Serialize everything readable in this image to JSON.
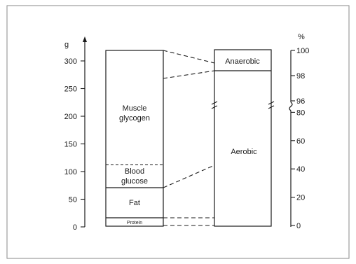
{
  "chart_data": {
    "type": "bar",
    "left_axis": {
      "unit": "g",
      "ticks": [
        "0",
        "50",
        "100",
        "150",
        "200",
        "250",
        "300"
      ],
      "range": [
        0,
        300
      ]
    },
    "right_axis": {
      "unit": "%",
      "ticks": [
        "0",
        "20",
        "40",
        "60",
        "80",
        "96",
        "98",
        "100"
      ],
      "broken": true
    },
    "energy_sources_g": {
      "segments": [
        {
          "label": "Protein",
          "from": 0,
          "to": 10
        },
        {
          "label": "Fat",
          "from": 10,
          "to": 70
        },
        {
          "label": "Blood glucose",
          "label_lines": [
            "Blood",
            "glucose"
          ],
          "from": 70,
          "to": 113
        },
        {
          "label": "Muscle glycogen",
          "label_lines": [
            "Muscle",
            "glycogen"
          ],
          "from": 113,
          "to": 320
        }
      ],
      "total": 320
    },
    "metabolism_percent": {
      "segments": [
        {
          "label": "Aerobic",
          "from": 0,
          "to": 98
        },
        {
          "label": "Anaerobic",
          "from": 98,
          "to": 100
        }
      ]
    }
  },
  "text": {
    "left_unit": "g",
    "right_unit": "%",
    "left_ticks": [
      "0",
      "50",
      "100",
      "150",
      "200",
      "250",
      "300"
    ],
    "right_ticks_lower": [
      "0",
      "20",
      "40",
      "60",
      "80"
    ],
    "right_ticks_upper": [
      "96",
      "98",
      "100"
    ],
    "muscle_1": "Muscle",
    "muscle_2": "glycogen",
    "blood_1": "Blood",
    "blood_2": "glucose",
    "fat": "Fat",
    "protein": "Protein",
    "anaerobic": "Anaerobic",
    "aerobic": "Aerobic"
  }
}
